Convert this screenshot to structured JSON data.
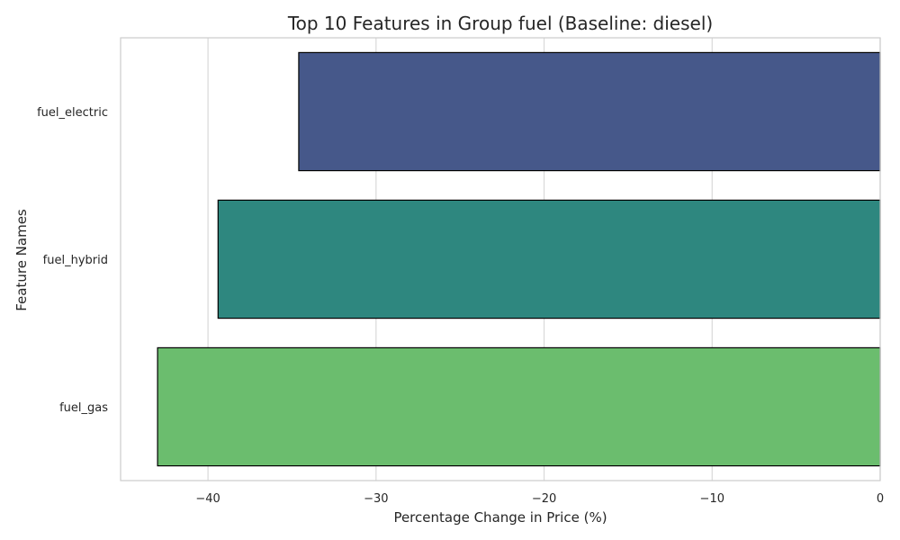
{
  "chart_data": {
    "type": "bar",
    "orientation": "horizontal",
    "title": "Top 10 Features in Group fuel (Baseline: diesel)",
    "xlabel": "Percentage Change in Price (%)",
    "ylabel": "Feature Names",
    "categories": [
      "fuel_electric",
      "fuel_hybrid",
      "fuel_gas"
    ],
    "values": [
      -34.6,
      -39.4,
      -43.0
    ],
    "colors": [
      "#46588a",
      "#2e877f",
      "#6bbd6e"
    ],
    "xlim": [
      -45.2,
      0
    ],
    "xticks": [
      -40,
      -30,
      -20,
      -10,
      0
    ],
    "xtick_labels": [
      "−40",
      "−30",
      "−20",
      "−10",
      "0"
    ],
    "grid": true
  }
}
